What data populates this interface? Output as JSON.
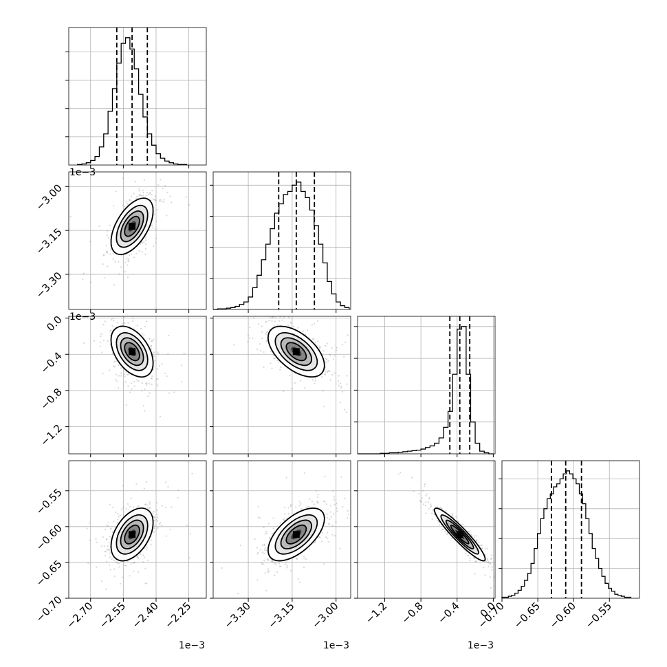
{
  "chart_data": {
    "type": "corner",
    "grid": true,
    "variables": [
      {
        "range": [
          -2.8,
          -2.17
        ],
        "ticks": [
          -2.7,
          -2.55,
          -2.4,
          -2.25
        ],
        "tick_labels": [
          "−2.70",
          "−2.55",
          "−2.40",
          "−2.25"
        ],
        "offset_text": "1e−3"
      },
      {
        "range": [
          -3.42,
          -2.95
        ],
        "ticks": [
          -3.3,
          -3.15,
          -3.0
        ],
        "tick_labels": [
          "−3.30",
          "−3.15",
          "−3.00"
        ],
        "offset_text": "1e−3"
      },
      {
        "range": [
          -1.5,
          0.02
        ],
        "ticks": [
          -1.2,
          -0.8,
          -0.4,
          0.0
        ],
        "tick_labels": [
          "−1.2",
          "−0.8",
          "−0.4",
          "0.0"
        ],
        "offset_text": "1e−3"
      },
      {
        "range": [
          -0.7,
          -0.508
        ],
        "ticks": [
          -0.7,
          -0.65,
          -0.6,
          -0.55
        ],
        "tick_labels": [
          "−0.70",
          "−0.65",
          "−0.60",
          "−0.55"
        ],
        "offset_text": ""
      }
    ],
    "histograms": [
      {
        "quantiles": [
          -2.58,
          -2.51,
          -2.44
        ],
        "bin_edges": [
          -2.76,
          -2.74,
          -2.72,
          -2.7,
          -2.68,
          -2.66,
          -2.64,
          -2.62,
          -2.6,
          -2.58,
          -2.56,
          -2.54,
          -2.52,
          -2.5,
          -2.48,
          -2.46,
          -2.44,
          -2.42,
          -2.4,
          -2.38,
          -2.36,
          -2.34,
          -2.32,
          -2.3,
          -2.28,
          -2.26
        ],
        "counts": [
          1,
          2,
          4,
          8,
          15,
          32,
          55,
          95,
          135,
          180,
          215,
          225,
          205,
          170,
          125,
          85,
          55,
          35,
          20,
          12,
          7,
          4,
          2,
          1,
          1
        ]
      },
      {
        "quantiles": [
          -3.196,
          -3.136,
          -3.074
        ],
        "bin_edges": [
          -3.42,
          -3.405,
          -3.39,
          -3.375,
          -3.36,
          -3.345,
          -3.33,
          -3.315,
          -3.3,
          -3.285,
          -3.27,
          -3.255,
          -3.24,
          -3.225,
          -3.21,
          -3.195,
          -3.18,
          -3.165,
          -3.15,
          -3.135,
          -3.12,
          -3.105,
          -3.09,
          -3.075,
          -3.06,
          -3.045,
          -3.03,
          -3.015,
          -3.0,
          -2.985,
          -2.97,
          -2.955
        ],
        "counts": [
          0,
          1,
          1,
          2,
          3,
          5,
          8,
          12,
          20,
          35,
          55,
          80,
          105,
          130,
          155,
          170,
          185,
          190,
          200,
          205,
          190,
          180,
          160,
          135,
          105,
          75,
          45,
          25,
          12,
          6,
          3
        ]
      },
      {
        "quantiles": [
          -0.48,
          -0.37,
          -0.26
        ],
        "bin_edges": [
          -1.5,
          -1.45,
          -1.4,
          -1.35,
          -1.3,
          -1.25,
          -1.2,
          -1.15,
          -1.1,
          -1.05,
          -1.0,
          -0.95,
          -0.9,
          -0.85,
          -0.8,
          -0.75,
          -0.7,
          -0.65,
          -0.6,
          -0.55,
          -0.5,
          -0.45,
          -0.4,
          -0.35,
          -0.3,
          -0.25,
          -0.2,
          -0.15,
          -0.1,
          -0.05,
          0.0
        ],
        "counts": [
          0,
          0,
          0,
          0,
          0,
          1,
          1,
          2,
          2,
          3,
          4,
          5,
          6,
          7,
          9,
          12,
          15,
          20,
          30,
          50,
          80,
          150,
          235,
          240,
          150,
          60,
          20,
          5,
          2,
          0
        ]
      },
      {
        "quantiles": [
          -0.631,
          -0.611,
          -0.589
        ],
        "bin_edges": [
          -0.7,
          -0.6955,
          -0.691,
          -0.6865,
          -0.682,
          -0.6775,
          -0.673,
          -0.6685,
          -0.664,
          -0.6595,
          -0.655,
          -0.6505,
          -0.646,
          -0.6415,
          -0.637,
          -0.6325,
          -0.628,
          -0.6235,
          -0.619,
          -0.6145,
          -0.61,
          -0.6055,
          -0.601,
          -0.5965,
          -0.592,
          -0.5875,
          -0.583,
          -0.5785,
          -0.574,
          -0.5695,
          -0.565,
          -0.5605,
          -0.556,
          -0.5515,
          -0.547,
          -0.5425,
          -0.538,
          -0.5335,
          -0.529,
          -0.5245,
          -0.52
        ],
        "counts": [
          1,
          1,
          2,
          3,
          5,
          8,
          12,
          18,
          25,
          35,
          50,
          65,
          80,
          90,
          100,
          105,
          112,
          115,
          120,
          125,
          128,
          125,
          120,
          115,
          105,
          95,
          80,
          65,
          50,
          40,
          30,
          22,
          15,
          10,
          7,
          4,
          3,
          2,
          1,
          1
        ]
      }
    ],
    "pairs": [
      {
        "x": 0,
        "y": 1,
        "mean": [
          -2.51,
          -3.136
        ],
        "std": [
          0.055,
          0.055
        ],
        "corr": 0.55
      },
      {
        "x": 0,
        "y": 2,
        "mean": [
          -2.51,
          -0.37
        ],
        "std": [
          0.055,
          0.16
        ],
        "corr": -0.45
      },
      {
        "x": 1,
        "y": 2,
        "mean": [
          -3.136,
          -0.37
        ],
        "std": [
          0.055,
          0.16
        ],
        "corr": -0.55
      },
      {
        "x": 0,
        "y": 3,
        "mean": [
          -2.51,
          -0.611
        ],
        "std": [
          0.055,
          0.021
        ],
        "corr": 0.45
      },
      {
        "x": 1,
        "y": 3,
        "mean": [
          -3.136,
          -0.611
        ],
        "std": [
          0.055,
          0.021
        ],
        "corr": 0.6
      },
      {
        "x": 2,
        "y": 3,
        "mean": [
          -0.37,
          -0.611
        ],
        "std": [
          0.16,
          0.021
        ],
        "corr": -0.93
      }
    ]
  }
}
